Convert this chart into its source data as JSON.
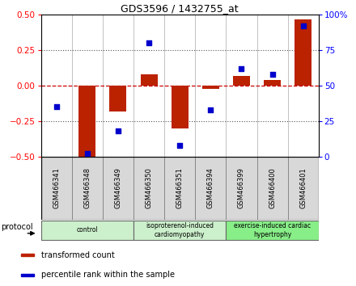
{
  "title": "GDS3596 / 1432755_at",
  "samples": [
    "GSM466341",
    "GSM466348",
    "GSM466349",
    "GSM466350",
    "GSM466351",
    "GSM466394",
    "GSM466399",
    "GSM466400",
    "GSM466401"
  ],
  "transformed_counts": [
    0.0,
    -0.5,
    -0.18,
    0.08,
    -0.3,
    -0.02,
    0.07,
    0.04,
    0.47
  ],
  "percentile_ranks": [
    35,
    2,
    18,
    80,
    8,
    33,
    62,
    58,
    92
  ],
  "groups": [
    {
      "label": "control",
      "start": 0,
      "end": 3,
      "color": "#ccf0cc"
    },
    {
      "label": "isoproterenol-induced\ncardiomyopathy",
      "start": 3,
      "end": 6,
      "color": "#ccf0cc"
    },
    {
      "label": "exercise-induced cardiac\nhypertrophy",
      "start": 6,
      "end": 9,
      "color": "#88ee88"
    }
  ],
  "ylim_left": [
    -0.5,
    0.5
  ],
  "ylim_right": [
    0,
    100
  ],
  "yticks_left": [
    -0.5,
    -0.25,
    0.0,
    0.25,
    0.5
  ],
  "yticks_right": [
    0,
    25,
    50,
    75,
    100
  ],
  "bar_color": "#bb2200",
  "scatter_color": "#0000cc",
  "dashed_line_color": "#cc0000",
  "dotted_line_color": "#555555",
  "dotted_yticks": [
    -0.25,
    0.25
  ],
  "legend_items": [
    {
      "label": "transformed count",
      "color": "#bb2200"
    },
    {
      "label": "percentile rank within the sample",
      "color": "#0000cc"
    }
  ]
}
